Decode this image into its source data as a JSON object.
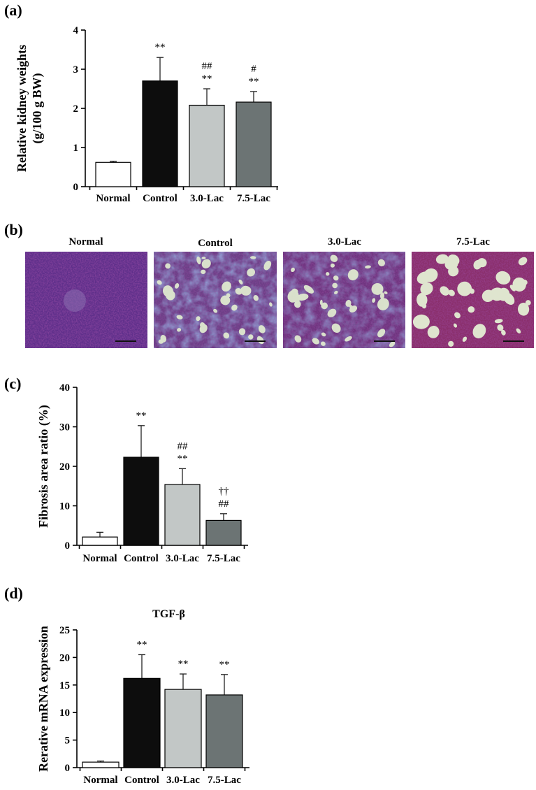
{
  "panels": {
    "a": "(a)",
    "b": "(b)",
    "c": "(c)",
    "d": "(d)"
  },
  "colors": {
    "Normal": "#ffffff",
    "Control": "#0d0d0d",
    "3.0-Lac": "#c2c7c6",
    "7.5-Lac": "#6c7474",
    "stain_purple": "#7a2f6e",
    "stain_blue": "#4a63a8",
    "lumen": "#dfe9cf"
  },
  "micrographs": {
    "labels": [
      "Normal",
      "Control",
      "3.0-Lac",
      "7.5-Lac"
    ]
  },
  "chart_data": [
    {
      "id": "a",
      "type": "bar",
      "title": "",
      "ylabel": "Relative kidney weights\n(g/100 g BW)",
      "xlabel": "",
      "categories": [
        "Normal",
        "Control",
        "3.0-Lac",
        "7.5-Lac"
      ],
      "values": [
        0.62,
        2.7,
        2.08,
        2.16
      ],
      "errors": [
        0.03,
        0.6,
        0.42,
        0.27
      ],
      "annotations": [
        [
          "",
          ""
        ],
        [
          "**",
          ""
        ],
        [
          "**",
          "##"
        ],
        [
          "**",
          "#"
        ]
      ],
      "ylim": [
        0,
        4
      ],
      "yticks": [
        0,
        1,
        2,
        3,
        4
      ]
    },
    {
      "id": "c",
      "type": "bar",
      "title": "",
      "ylabel": "Fibrosis area ratio (%)",
      "xlabel": "",
      "categories": [
        "Normal",
        "Control",
        "3.0-Lac",
        "7.5-Lac"
      ],
      "values": [
        2.1,
        22.3,
        15.4,
        6.3
      ],
      "errors": [
        1.2,
        8.0,
        4.0,
        1.7
      ],
      "annotations": [
        [
          "",
          "",
          ""
        ],
        [
          "**",
          "",
          ""
        ],
        [
          "**",
          "##",
          ""
        ],
        [
          "##",
          "††",
          ""
        ]
      ],
      "ylim": [
        0,
        40
      ],
      "yticks": [
        0,
        10,
        20,
        30,
        40
      ]
    },
    {
      "id": "d",
      "type": "bar",
      "title": "TGF-β",
      "ylabel": "Rerative mRNA expression",
      "xlabel": "",
      "categories": [
        "Normal",
        "Control",
        "3.0-Lac",
        "7.5-Lac"
      ],
      "values": [
        1.0,
        16.2,
        14.2,
        13.2
      ],
      "errors": [
        0.2,
        4.3,
        2.8,
        3.7
      ],
      "annotations": [
        [
          ""
        ],
        [
          "**"
        ],
        [
          "**"
        ],
        [
          "**"
        ]
      ],
      "ylim": [
        0,
        25
      ],
      "yticks": [
        0,
        5,
        10,
        15,
        20,
        25
      ]
    }
  ]
}
